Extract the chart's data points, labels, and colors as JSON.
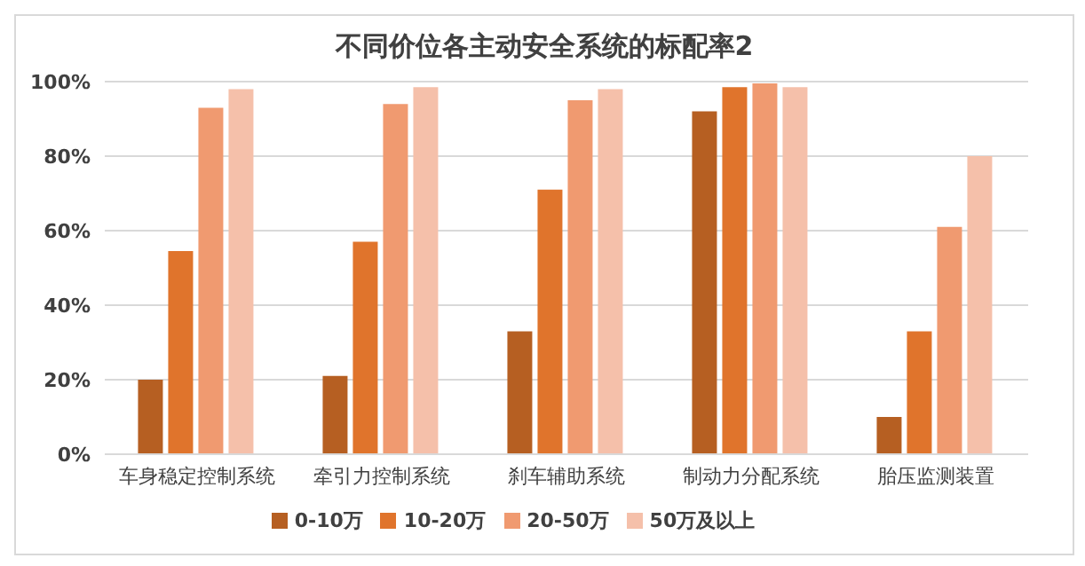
{
  "chart_data": {
    "type": "bar",
    "title": "不同价位各主动安全系统的标配率2",
    "categories": [
      "车身稳定控制系统",
      "牵引力控制系统",
      "刹车辅助系统",
      "制动力分配系统",
      "胎压监测装置"
    ],
    "series": [
      {
        "name": "0-10万",
        "color": "#b65f22",
        "values": [
          20,
          21,
          33,
          92,
          10
        ]
      },
      {
        "name": "10-20万",
        "color": "#e0742c",
        "values": [
          54.5,
          57,
          71,
          98.5,
          33
        ]
      },
      {
        "name": "20-50万",
        "color": "#f09a70",
        "values": [
          93,
          94,
          95,
          99.5,
          61
        ]
      },
      {
        "name": "50万及以上",
        "color": "#f5c0aa",
        "values": [
          98,
          98.5,
          98,
          98.5,
          80
        ]
      }
    ],
    "ylim": [
      0,
      100
    ],
    "yticks": [
      {
        "value": 0,
        "label": "0%"
      },
      {
        "value": 20,
        "label": "20%"
      },
      {
        "value": 40,
        "label": "40%"
      },
      {
        "value": 60,
        "label": "60%"
      },
      {
        "value": 80,
        "label": "80%"
      },
      {
        "value": 100,
        "label": "100%"
      }
    ],
    "grid": "y",
    "legend": "bottom"
  }
}
